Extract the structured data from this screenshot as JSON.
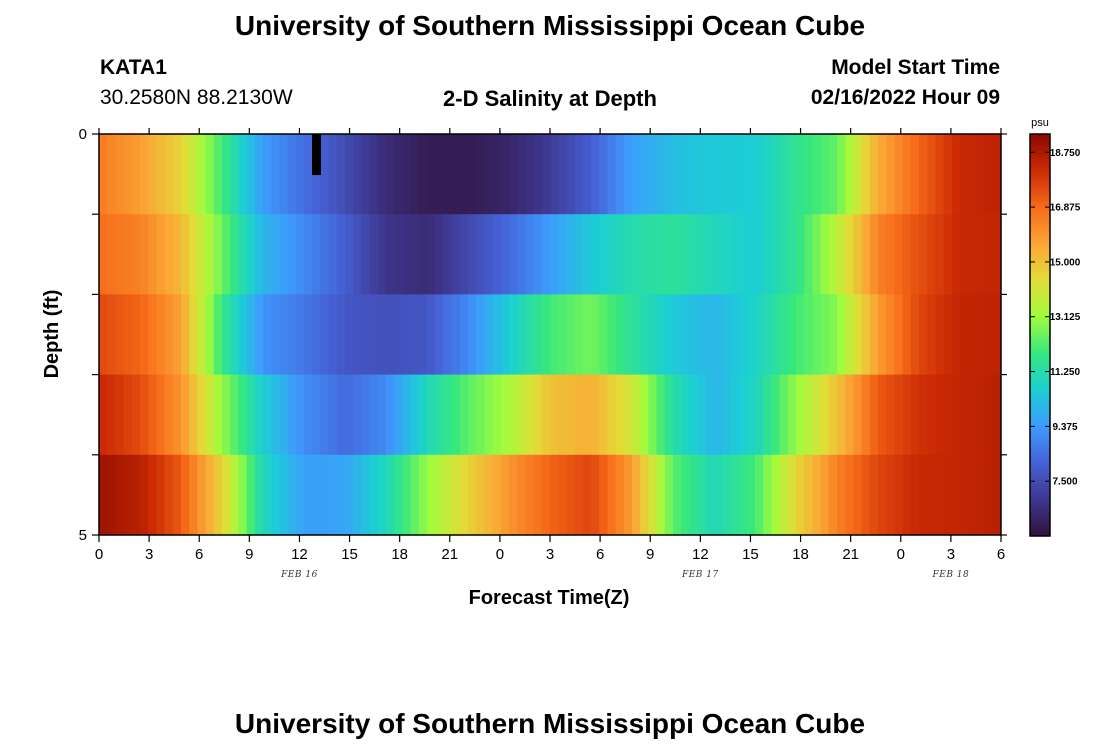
{
  "header": {
    "title": "University of Southern Mississippi Ocean Cube",
    "station": "KATA1",
    "coords": "30.2580N  88.2130W",
    "chart_title": "2-D Salinity at Depth",
    "model_start_label": "Model Start Time",
    "model_start_value": "02/16/2022 Hour 09"
  },
  "footer": {
    "title": "University of Southern Mississippi Ocean Cube"
  },
  "chart_data": {
    "type": "heatmap",
    "title": "2-D Salinity at Depth",
    "xlabel": "Forecast Time(Z)",
    "ylabel": "Depth (ft)",
    "x_tick_labels": [
      "0",
      "3",
      "6",
      "9",
      "12",
      "15",
      "18",
      "21",
      "0",
      "3",
      "6",
      "9",
      "12",
      "15",
      "18",
      "21",
      "0",
      "3",
      "6"
    ],
    "x_hours": [
      0,
      3,
      6,
      9,
      12,
      15,
      18,
      21,
      24,
      27,
      30,
      33,
      36,
      39,
      42,
      45,
      48,
      51,
      54
    ],
    "xlim": [
      0,
      54
    ],
    "date_labels": [
      {
        "label": "FEB 16",
        "hour": 12
      },
      {
        "label": "FEB 17",
        "hour": 36
      },
      {
        "label": "FEB 18",
        "hour": 51
      }
    ],
    "y_tick_labels": [
      "0",
      "5"
    ],
    "ylim": [
      0,
      5
    ],
    "depth_layers": 5,
    "colorbar": {
      "unit": "psu",
      "min": 5.625,
      "max": 19.375,
      "tick_labels": [
        "18.750",
        "16.875",
        "15.000",
        "13.125",
        "11.250",
        "9.375",
        "7.500"
      ],
      "tick_values": [
        18.75,
        16.875,
        15.0,
        13.125,
        11.25,
        9.375,
        7.5
      ],
      "colors": [
        "#30123b",
        "#3e378f",
        "#4662d7",
        "#3e9bfe",
        "#1bcfd4",
        "#36e77f",
        "#a1fc3d",
        "#e1dd37",
        "#fba636",
        "#f66b19",
        "#cb2a04",
        "#8b0a02"
      ]
    },
    "rows": [
      {
        "layer": 1,
        "values": [
          16.5,
          15.8,
          14.6,
          12.0,
          9.4,
          8.4,
          7.5,
          6.5,
          6.0,
          6.0,
          6.3,
          7.0,
          8.0,
          9.5,
          10.2,
          10.5,
          10.6,
          11.6,
          12.4,
          15.5,
          17.0,
          18.2,
          18.4
        ]
      },
      {
        "layer": 2,
        "values": [
          16.8,
          16.4,
          15.2,
          12.5,
          10.0,
          9.0,
          8.0,
          6.8,
          6.5,
          7.4,
          8.3,
          9.4,
          10.5,
          11.2,
          11.5,
          11.0,
          10.6,
          11.6,
          13.6,
          16.4,
          17.4,
          18.2,
          18.3
        ]
      },
      {
        "layer": 3,
        "values": [
          17.5,
          17.0,
          15.7,
          11.8,
          9.2,
          8.6,
          7.8,
          7.6,
          7.8,
          9.0,
          10.6,
          12.0,
          12.6,
          11.5,
          10.5,
          10.0,
          10.8,
          12.0,
          12.8,
          15.8,
          17.6,
          18.3,
          18.4
        ]
      },
      {
        "layer": 4,
        "values": [
          18.2,
          17.5,
          16.0,
          13.0,
          10.6,
          9.1,
          8.3,
          9.0,
          11.0,
          12.3,
          13.3,
          15.0,
          15.4,
          14.0,
          11.3,
          10.0,
          10.9,
          13.0,
          15.0,
          17.2,
          18.0,
          18.3,
          18.5
        ]
      },
      {
        "layer": 5,
        "values": [
          19.0,
          18.5,
          17.2,
          14.6,
          11.0,
          9.5,
          9.6,
          11.0,
          13.0,
          14.6,
          16.0,
          17.0,
          17.6,
          15.8,
          12.3,
          11.0,
          12.0,
          14.5,
          16.4,
          17.6,
          18.2,
          18.3,
          18.5
        ]
      }
    ]
  }
}
